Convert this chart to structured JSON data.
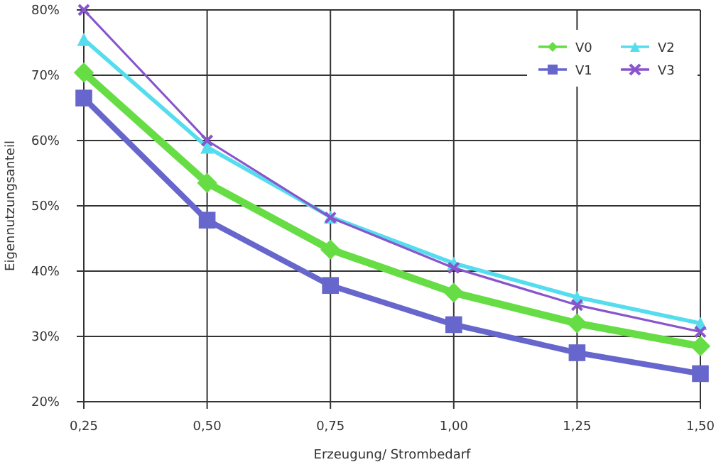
{
  "chart_data": {
    "type": "line",
    "xlabel": "Erzeugung/ Strombedarf",
    "ylabel": "Eigennutzungsanteil",
    "x": [
      0.25,
      0.5,
      0.75,
      1.0,
      1.25,
      1.5
    ],
    "xlim": [
      0.25,
      1.5
    ],
    "xticks": [
      {
        "value": 0.25,
        "label": "0,25"
      },
      {
        "value": 0.5,
        "label": "0,50"
      },
      {
        "value": 0.75,
        "label": "0,75"
      },
      {
        "value": 1.0,
        "label": "1,00"
      },
      {
        "value": 1.25,
        "label": "1,25"
      },
      {
        "value": 1.5,
        "label": "1,50"
      }
    ],
    "ylim": [
      20,
      80
    ],
    "yticks": [
      {
        "value": 20,
        "label": "20%"
      },
      {
        "value": 30,
        "label": "30%"
      },
      {
        "value": 40,
        "label": "40%"
      },
      {
        "value": 50,
        "label": "50%"
      },
      {
        "value": 60,
        "label": "60%"
      },
      {
        "value": 70,
        "label": "70%"
      },
      {
        "value": 80,
        "label": "80%"
      }
    ],
    "grid": true,
    "legend": "top right",
    "series": [
      {
        "name": "V0",
        "color": "#66dd44",
        "marker": "diamond",
        "values": [
          70.4,
          53.5,
          43.3,
          36.7,
          32,
          28.5
        ]
      },
      {
        "name": "V1",
        "color": "#6666cc",
        "marker": "square",
        "values": [
          66.5,
          47.8,
          37.8,
          31.8,
          27.5,
          24.3
        ]
      },
      {
        "name": "V2",
        "color": "#55ddee",
        "marker": "triangle",
        "values": [
          75.5,
          59,
          48.3,
          41.2,
          36,
          32
        ]
      },
      {
        "name": "V3",
        "color": "#8855cc",
        "marker": "cross",
        "values": [
          80,
          60,
          48.2,
          40.5,
          34.8,
          30.7
        ]
      }
    ]
  }
}
